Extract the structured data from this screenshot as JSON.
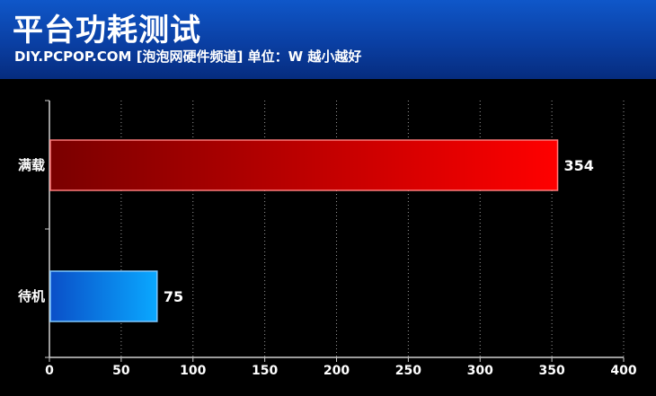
{
  "header": {
    "title": "平台功耗测试",
    "subtitle": "DIY.PCPOP.COM [泡泡网硬件频道] 单位：W  越小越好"
  },
  "chart_data": {
    "type": "bar",
    "orientation": "horizontal",
    "categories": [
      "满载",
      "待机"
    ],
    "values": [
      354,
      75
    ],
    "data_labels": [
      "354",
      "75"
    ],
    "bar_colors": [
      {
        "from": "#7a0000",
        "to": "#ff0000",
        "border": "#ff7a7a"
      },
      {
        "from": "#0a4fc8",
        "to": "#0aa8ff",
        "border": "#7ec8ff"
      }
    ],
    "xlim": [
      0,
      400
    ],
    "xticks": [
      0,
      50,
      100,
      150,
      200,
      250,
      300,
      350,
      400
    ],
    "tick_labels": [
      "0",
      "50",
      "100",
      "150",
      "200",
      "250",
      "300",
      "350",
      "400"
    ],
    "grid": true,
    "grid_style": "dotted"
  }
}
